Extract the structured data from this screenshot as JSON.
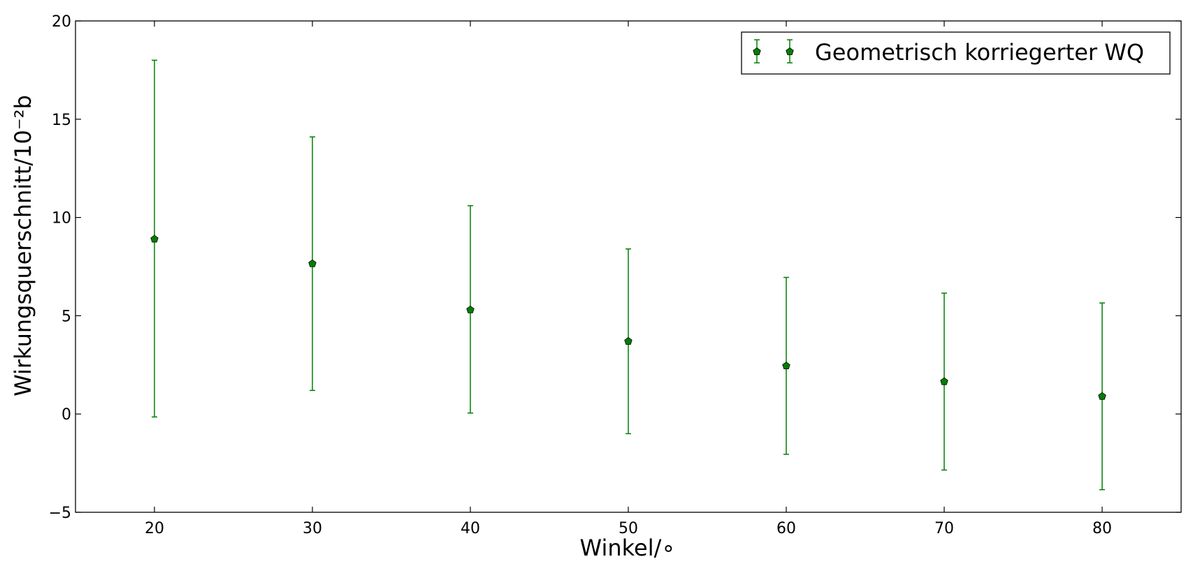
{
  "chart_data": {
    "type": "scatter",
    "title": "",
    "xlabel": "Winkel/∘",
    "ylabel": "Wirkungsquerschnitt/10⁻²b",
    "xlim": [
      15,
      85
    ],
    "ylim": [
      -5,
      20
    ],
    "xticks": [
      20,
      30,
      40,
      50,
      60,
      70,
      80
    ],
    "yticks": [
      -5,
      0,
      5,
      10,
      15,
      20
    ],
    "ytick_labels": [
      "−5",
      "0",
      "5",
      "10",
      "15",
      "20"
    ],
    "grid": false,
    "legend_position": "top-right",
    "series": [
      {
        "name": "Geometrisch korriegerter WQ",
        "color": "#008000",
        "marker": "pentagon",
        "x": [
          20,
          30,
          40,
          50,
          60,
          70,
          80
        ],
        "y": [
          8.9,
          7.65,
          5.3,
          3.7,
          2.45,
          1.65,
          0.9
        ],
        "yerr_low": [
          -0.15,
          1.2,
          0.05,
          -1.0,
          -2.05,
          -2.85,
          -3.85
        ],
        "yerr_high": [
          18.0,
          14.1,
          10.6,
          8.4,
          6.95,
          6.15,
          5.65
        ]
      }
    ]
  }
}
